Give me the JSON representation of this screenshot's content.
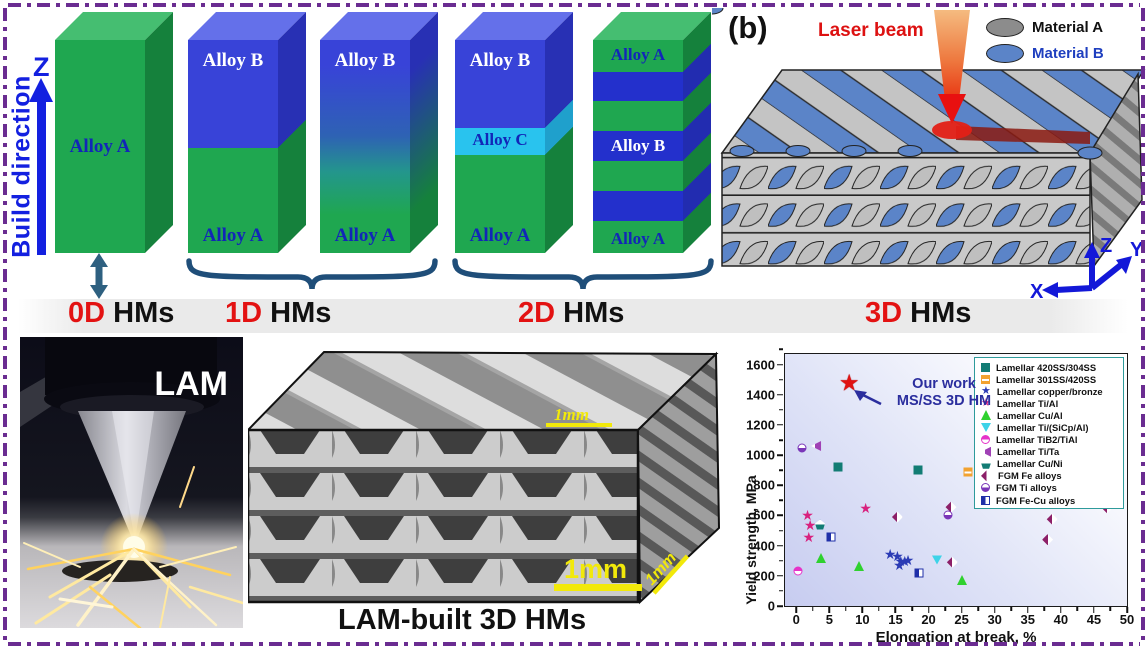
{
  "colors": {
    "frame_purple": "#6A2C91",
    "alloy_green": "#1FA750",
    "alloy_blue": "#3843D8",
    "alloy_cyan": "#29C3EE",
    "build_blue": "#1320E0",
    "dim_red": "#E31212",
    "laser_red": "#DD1111",
    "scalebar_yellow": "#F2E90A"
  },
  "panel_a": {
    "build_direction": "Build direction",
    "z_axis": "Z",
    "box_0d": {
      "label": "Alloy A"
    },
    "box_1d_sharp": {
      "top": "Alloy B",
      "bottom": "Alloy A"
    },
    "box_1d_gradient": {
      "top": "Alloy B",
      "bottom": "Alloy A"
    },
    "box_2d_tri": {
      "top": "Alloy B",
      "middle": "Alloy C",
      "bottom": "Alloy A"
    },
    "box_2d_multi": {
      "top": "Alloy A",
      "middle": "Alloy B",
      "bottom": "Alloy A"
    },
    "dim_labels": [
      {
        "num": "0D",
        "text": " HMs"
      },
      {
        "num": "1D",
        "text": " HMs"
      },
      {
        "num": "2D",
        "text": " HMs"
      },
      {
        "num": "3D",
        "text": " HMs"
      }
    ]
  },
  "panel_b": {
    "tag": "(b)",
    "laser_label": "Laser beam",
    "legend": {
      "material_a": "Material A",
      "material_b": "Material B"
    },
    "axes": {
      "x": "X",
      "y": "Y",
      "z": "Z"
    }
  },
  "bottom": {
    "lam_label": "LAM",
    "micro_caption": "LAM-built 3D HMs",
    "scale_top": "1mm",
    "scale_front": "1mm",
    "scale_side": "1mm"
  },
  "chart_data": {
    "type": "scatter",
    "xlabel": "Elongation at break, %",
    "ylabel": "Yield strength, MPa",
    "xlim": [
      -1.7,
      50
    ],
    "ylim": [
      0,
      1670
    ],
    "xticks": [
      0,
      5,
      10,
      15,
      20,
      25,
      30,
      35,
      40,
      45,
      50
    ],
    "yticks": [
      0,
      200,
      400,
      600,
      800,
      1000,
      1200,
      1400,
      1600
    ],
    "grid": false,
    "legend_position": "upper right",
    "annotation": {
      "line1": "Our work",
      "line2": "MS/SS 3D HM",
      "target_x": 8,
      "target_y": 1480
    },
    "series": [
      {
        "name": "Lamellar 420SS/304SS",
        "marker": "sq",
        "color": "#127C74",
        "points": [
          [
            6.3,
            920
          ],
          [
            18.4,
            900
          ]
        ]
      },
      {
        "name": "Lamellar 301SS/420SS",
        "marker": "sqh",
        "color": "#F2A230",
        "points": [
          [
            26,
            885
          ]
        ]
      },
      {
        "name": "Lamellar copper/bronze",
        "marker": "star",
        "color": "#2B3BB5",
        "points": [
          [
            14.2,
            345
          ],
          [
            15.3,
            330
          ],
          [
            15.8,
            300
          ],
          [
            16.4,
            295
          ],
          [
            16.9,
            305
          ],
          [
            15.6,
            275
          ]
        ]
      },
      {
        "name": "Lamellar Ti/Al",
        "marker": "star",
        "color": "#D8217E",
        "points": [
          [
            1.7,
            600
          ],
          [
            2.1,
            535
          ],
          [
            1.9,
            460
          ],
          [
            10.5,
            650
          ]
        ]
      },
      {
        "name": "Lamellar Cu/Al",
        "marker": "tri",
        "color": "#2FD12F",
        "points": [
          [
            3.8,
            320
          ],
          [
            9.5,
            265
          ],
          [
            25,
            175
          ]
        ]
      },
      {
        "name": "Lamellar Ti/(SiCp/Al)",
        "marker": "trid",
        "color": "#3ED3E8",
        "points": [
          [
            21.3,
            305
          ]
        ]
      },
      {
        "name": "Lamellar TiB2/TiAl",
        "marker": "circt",
        "color": "#E633C8",
        "points": [
          [
            0.3,
            230
          ]
        ]
      },
      {
        "name": "Lamellar Ti/Ta",
        "marker": "tril",
        "color": "#A041B5",
        "points": [
          [
            3.0,
            1060
          ]
        ]
      },
      {
        "name": "Lamellar Cu/Ni",
        "marker": "pent",
        "color": "#127C74",
        "points": [
          [
            3.6,
            540
          ]
        ]
      },
      {
        "name": "FGM Fe alloys",
        "marker": "diam",
        "color": "#8C1F68",
        "points": [
          [
            15.3,
            590
          ],
          [
            23.4,
            655
          ],
          [
            23.6,
            290
          ],
          [
            38,
            440
          ],
          [
            38.7,
            575
          ],
          [
            47,
            650
          ]
        ]
      },
      {
        "name": "FGM Ti alloys",
        "marker": "circb",
        "color": "#7A36B8",
        "points": [
          [
            0.9,
            1050
          ],
          [
            22.9,
            600
          ]
        ]
      },
      {
        "name": "FGM Fe-Cu alloys",
        "marker": "sqv",
        "color": "#1F2FA8",
        "points": [
          [
            5.2,
            460
          ],
          [
            18.5,
            220
          ]
        ]
      },
      {
        "name": "Our work MS/SS 3D HM",
        "marker": "starbig",
        "color": "#E01212",
        "in_legend": false,
        "points": [
          [
            8,
            1480
          ]
        ]
      }
    ]
  }
}
